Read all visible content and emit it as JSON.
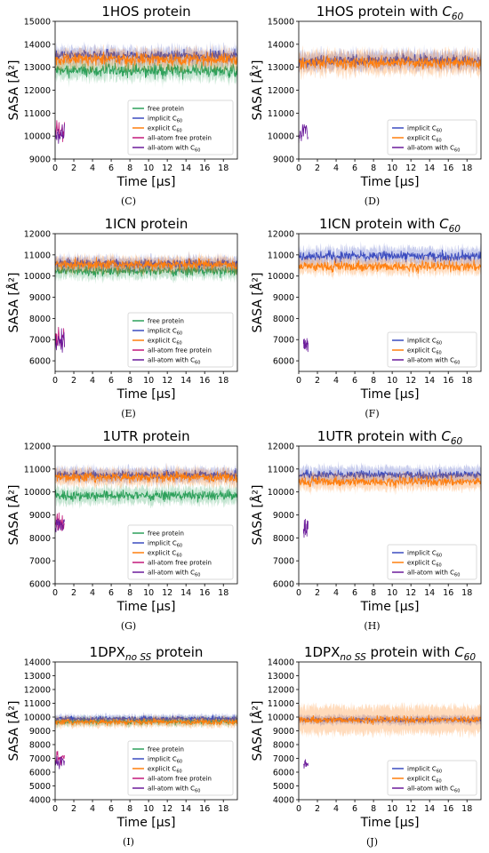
{
  "figure": {
    "captions": [
      "(C)",
      "(D)",
      "(E)",
      "(F)",
      "(G)",
      "(H)",
      "(I)",
      "(J)"
    ],
    "xlabel": "Time [μs]",
    "ylabel": "SASA [Å²]",
    "x_ticks": [
      0,
      2,
      4,
      6,
      8,
      10,
      12,
      14,
      16,
      18
    ],
    "colors": {
      "free_protein": "#2ca05a",
      "implicit_c60": "#3b4cc0",
      "explicit_c60": "#ff7f0e",
      "allatom_free": "#c2187a",
      "allatom_c60": "#6a1b9a"
    },
    "legend": {
      "free_protein": "free protein",
      "implicit_prefix": "implicit C",
      "explicit_prefix": "explicit C",
      "allatom_free": "all-atom free protein",
      "allatom_c60_prefix": "all-atom with C",
      "sub": "60"
    }
  },
  "chart_data": [
    {
      "panel": "C",
      "type": "line",
      "title": "1HOS protein",
      "xlabel": "Time [μs]",
      "ylabel": "SASA [Å²]",
      "xlim": [
        0,
        19.5
      ],
      "ylim": [
        9000,
        15000
      ],
      "yticks": [
        9000,
        10000,
        11000,
        12000,
        13000,
        14000,
        15000
      ],
      "legend_position": "lower-right",
      "series": [
        {
          "name": "free protein",
          "key": "free_protein",
          "x_range": [
            0,
            19.5
          ],
          "mean": 12850,
          "noise": 250,
          "band": 450
        },
        {
          "name": "implicit C60",
          "key": "implicit_c60",
          "x_range": [
            0,
            19.5
          ],
          "mean": 13500,
          "noise": 200,
          "band": 400
        },
        {
          "name": "explicit C60",
          "key": "explicit_c60",
          "x_range": [
            0,
            19.5
          ],
          "mean": 13350,
          "noise": 220,
          "band": 450
        },
        {
          "name": "all-atom free protein",
          "key": "allatom_free",
          "x_range": [
            0,
            1
          ],
          "mean": 10200,
          "noise": 450,
          "band": 0
        },
        {
          "name": "all-atom with C60",
          "key": "allatom_c60",
          "x_range": [
            0,
            1
          ],
          "mean": 10000,
          "noise": 400,
          "band": 0
        }
      ]
    },
    {
      "panel": "D",
      "type": "line",
      "title": "1HOS protein with C60",
      "xlabel": "Time [μs]",
      "ylabel": "SASA [Å²]",
      "xlim": [
        0,
        19.5
      ],
      "ylim": [
        9000,
        15000
      ],
      "yticks": [
        9000,
        10000,
        11000,
        12000,
        13000,
        14000,
        15000
      ],
      "legend_position": "lower-right",
      "series": [
        {
          "name": "implicit C60",
          "key": "implicit_c60",
          "x_range": [
            0,
            19.5
          ],
          "mean": 13300,
          "noise": 200,
          "band": 450
        },
        {
          "name": "explicit C60",
          "key": "explicit_c60",
          "x_range": [
            0,
            19.5
          ],
          "mean": 13200,
          "noise": 220,
          "band": 550
        },
        {
          "name": "all-atom with C60",
          "key": "allatom_c60",
          "x_range": [
            0,
            1
          ],
          "mean": 10200,
          "noise": 400,
          "band": 0
        }
      ]
    },
    {
      "panel": "E",
      "type": "line",
      "title": "1ICN protein",
      "xlabel": "Time [μs]",
      "ylabel": "SASA [Å²]",
      "xlim": [
        0,
        19.5
      ],
      "ylim": [
        5500,
        12000
      ],
      "yticks": [
        6000,
        7000,
        8000,
        9000,
        10000,
        11000,
        12000
      ],
      "legend_position": "lower-right",
      "series": [
        {
          "name": "free protein",
          "key": "free_protein",
          "x_range": [
            0,
            19.5
          ],
          "mean": 10250,
          "noise": 200,
          "band": 400
        },
        {
          "name": "implicit C60",
          "key": "implicit_c60",
          "x_range": [
            0,
            19.5
          ],
          "mean": 10600,
          "noise": 180,
          "band": 350
        },
        {
          "name": "explicit C60",
          "key": "explicit_c60",
          "x_range": [
            0,
            19.5
          ],
          "mean": 10550,
          "noise": 200,
          "band": 400
        },
        {
          "name": "all-atom free protein",
          "key": "allatom_free",
          "x_range": [
            0,
            1
          ],
          "mean": 7100,
          "noise": 450,
          "band": 0
        },
        {
          "name": "all-atom with C60",
          "key": "allatom_c60",
          "x_range": [
            0,
            1
          ],
          "mean": 6900,
          "noise": 400,
          "band": 0
        }
      ]
    },
    {
      "panel": "F",
      "type": "line",
      "title": "1ICN protein with C60",
      "xlabel": "Time [μs]",
      "ylabel": "SASA [Å²]",
      "xlim": [
        0,
        19.5
      ],
      "ylim": [
        5500,
        12000
      ],
      "yticks": [
        6000,
        7000,
        8000,
        9000,
        10000,
        11000,
        12000
      ],
      "legend_position": "lower-right",
      "series": [
        {
          "name": "implicit C60",
          "key": "implicit_c60",
          "x_range": [
            0,
            19.5
          ],
          "mean": 10950,
          "noise": 200,
          "band": 450
        },
        {
          "name": "explicit C60",
          "key": "explicit_c60",
          "x_range": [
            0,
            19.5
          ],
          "mean": 10450,
          "noise": 200,
          "band": 400
        },
        {
          "name": "all-atom with C60",
          "key": "allatom_c60",
          "x_range": [
            0.5,
            1
          ],
          "mean": 6800,
          "noise": 350,
          "band": 0
        }
      ]
    },
    {
      "panel": "G",
      "type": "line",
      "title": "1UTR protein",
      "xlabel": "Time [μs]",
      "ylabel": "SASA [Å²]",
      "xlim": [
        0,
        19.5
      ],
      "ylim": [
        6000,
        12000
      ],
      "yticks": [
        6000,
        7000,
        8000,
        9000,
        10000,
        11000,
        12000
      ],
      "legend_position": "lower-right",
      "series": [
        {
          "name": "free protein",
          "key": "free_protein",
          "x_range": [
            0,
            19.5
          ],
          "mean": 9850,
          "noise": 180,
          "band": 400
        },
        {
          "name": "implicit C60",
          "key": "implicit_c60",
          "x_range": [
            0,
            19.5
          ],
          "mean": 10750,
          "noise": 160,
          "band": 350
        },
        {
          "name": "explicit C60",
          "key": "explicit_c60",
          "x_range": [
            0,
            19.5
          ],
          "mean": 10650,
          "noise": 180,
          "band": 400
        },
        {
          "name": "all-atom free protein",
          "key": "allatom_free",
          "x_range": [
            0,
            1
          ],
          "mean": 8700,
          "noise": 450,
          "band": 0
        },
        {
          "name": "all-atom with C60",
          "key": "allatom_c60",
          "x_range": [
            0,
            1
          ],
          "mean": 8500,
          "noise": 400,
          "band": 0
        }
      ]
    },
    {
      "panel": "H",
      "type": "line",
      "title": "1UTR protein with C60",
      "xlabel": "Time [μs]",
      "ylabel": "SASA [Å²]",
      "xlim": [
        0,
        19.5
      ],
      "ylim": [
        6000,
        12000
      ],
      "yticks": [
        6000,
        7000,
        8000,
        9000,
        10000,
        11000,
        12000
      ],
      "legend_position": "lower-right",
      "series": [
        {
          "name": "implicit C60",
          "key": "implicit_c60",
          "x_range": [
            0,
            19.5
          ],
          "mean": 10750,
          "noise": 160,
          "band": 400
        },
        {
          "name": "explicit C60",
          "key": "explicit_c60",
          "x_range": [
            0,
            19.5
          ],
          "mean": 10450,
          "noise": 170,
          "band": 400
        },
        {
          "name": "all-atom with C60",
          "key": "allatom_c60",
          "x_range": [
            0.5,
            1
          ],
          "mean": 8400,
          "noise": 350,
          "band": 0
        }
      ]
    },
    {
      "panel": "I",
      "type": "line",
      "title": "1DPX protein",
      "title_sub": "no SS",
      "xlabel": "Time [μs]",
      "ylabel": "SASA [Å²]",
      "xlim": [
        0,
        19.5
      ],
      "ylim": [
        4000,
        14000
      ],
      "yticks": [
        4000,
        5000,
        6000,
        7000,
        8000,
        9000,
        10000,
        11000,
        12000,
        13000,
        14000
      ],
      "legend_position": "lower-right",
      "series": [
        {
          "name": "free protein",
          "key": "free_protein",
          "x_range": [
            0,
            19.5
          ],
          "mean": 9700,
          "noise": 180,
          "band": 350
        },
        {
          "name": "implicit C60",
          "key": "implicit_c60",
          "x_range": [
            0,
            19.5
          ],
          "mean": 9900,
          "noise": 150,
          "band": 300
        },
        {
          "name": "explicit C60",
          "key": "explicit_c60",
          "x_range": [
            0,
            19.5
          ],
          "mean": 9650,
          "noise": 180,
          "band": 400
        },
        {
          "name": "all-atom free protein",
          "key": "allatom_free",
          "x_range": [
            0,
            1
          ],
          "mean": 7100,
          "noise": 450,
          "band": 0
        },
        {
          "name": "all-atom with C60",
          "key": "allatom_c60",
          "x_range": [
            0,
            1
          ],
          "mean": 6800,
          "noise": 400,
          "band": 0
        }
      ]
    },
    {
      "panel": "J",
      "type": "line",
      "title": "1DPX protein with C60",
      "title_sub": "no SS",
      "xlabel": "Time [μs]",
      "ylabel": "SASA [Å²]",
      "xlim": [
        0,
        19.5
      ],
      "ylim": [
        4000,
        14000
      ],
      "yticks": [
        4000,
        5000,
        6000,
        7000,
        8000,
        9000,
        10000,
        11000,
        12000,
        13000,
        14000
      ],
      "legend_position": "lower-right",
      "series": [
        {
          "name": "implicit C60",
          "key": "implicit_c60",
          "x_range": [
            0,
            19.5
          ],
          "mean": 9800,
          "noise": 150,
          "band": 350
        },
        {
          "name": "explicit C60",
          "key": "explicit_c60",
          "x_range": [
            0,
            19.5
          ],
          "mean": 9800,
          "noise": 220,
          "band": 1200
        },
        {
          "name": "all-atom with C60",
          "key": "allatom_c60",
          "x_range": [
            0.5,
            1
          ],
          "mean": 6600,
          "noise": 300,
          "band": 0
        }
      ]
    }
  ]
}
